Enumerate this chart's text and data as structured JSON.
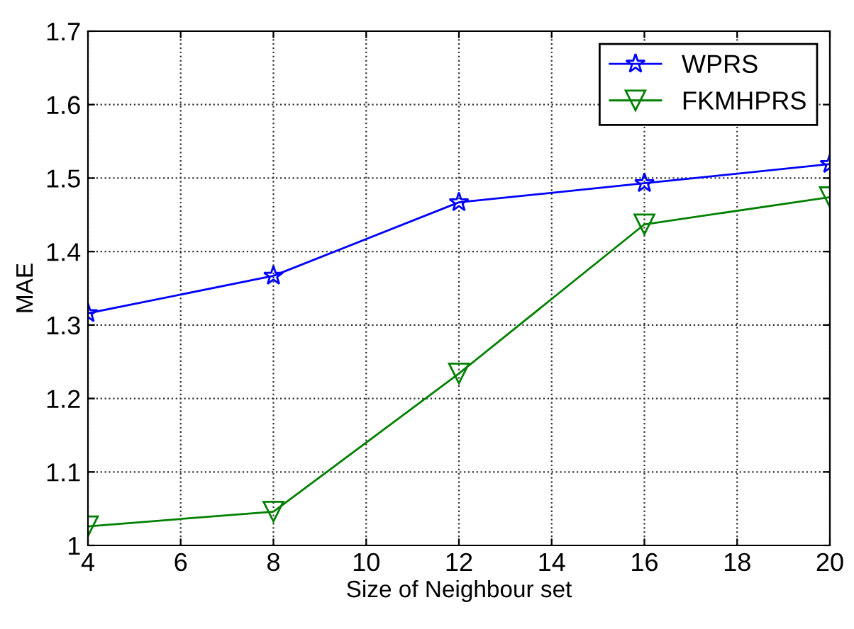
{
  "chart_data": {
    "type": "line",
    "xlabel": "Size of Neighbour set",
    "ylabel": "MAE",
    "x": [
      4,
      8,
      12,
      16,
      20
    ],
    "series": [
      {
        "name": "WPRS",
        "color": "#0000ff",
        "marker": "star",
        "values": [
          1.316,
          1.367,
          1.467,
          1.493,
          1.519
        ]
      },
      {
        "name": "FKMHPRS",
        "color": "#008000",
        "marker": "triangle",
        "values": [
          1.026,
          1.046,
          1.234,
          1.437,
          1.474
        ]
      }
    ],
    "xlim": [
      4,
      20
    ],
    "xticks": [
      4,
      6,
      8,
      10,
      12,
      14,
      16,
      18,
      20
    ],
    "ylim": [
      1,
      1.7
    ],
    "yticks": [
      1,
      1.1,
      1.2,
      1.3,
      1.4,
      1.5,
      1.6,
      1.7
    ],
    "grid": true,
    "legend": "top right",
    "line_style": "solid"
  }
}
